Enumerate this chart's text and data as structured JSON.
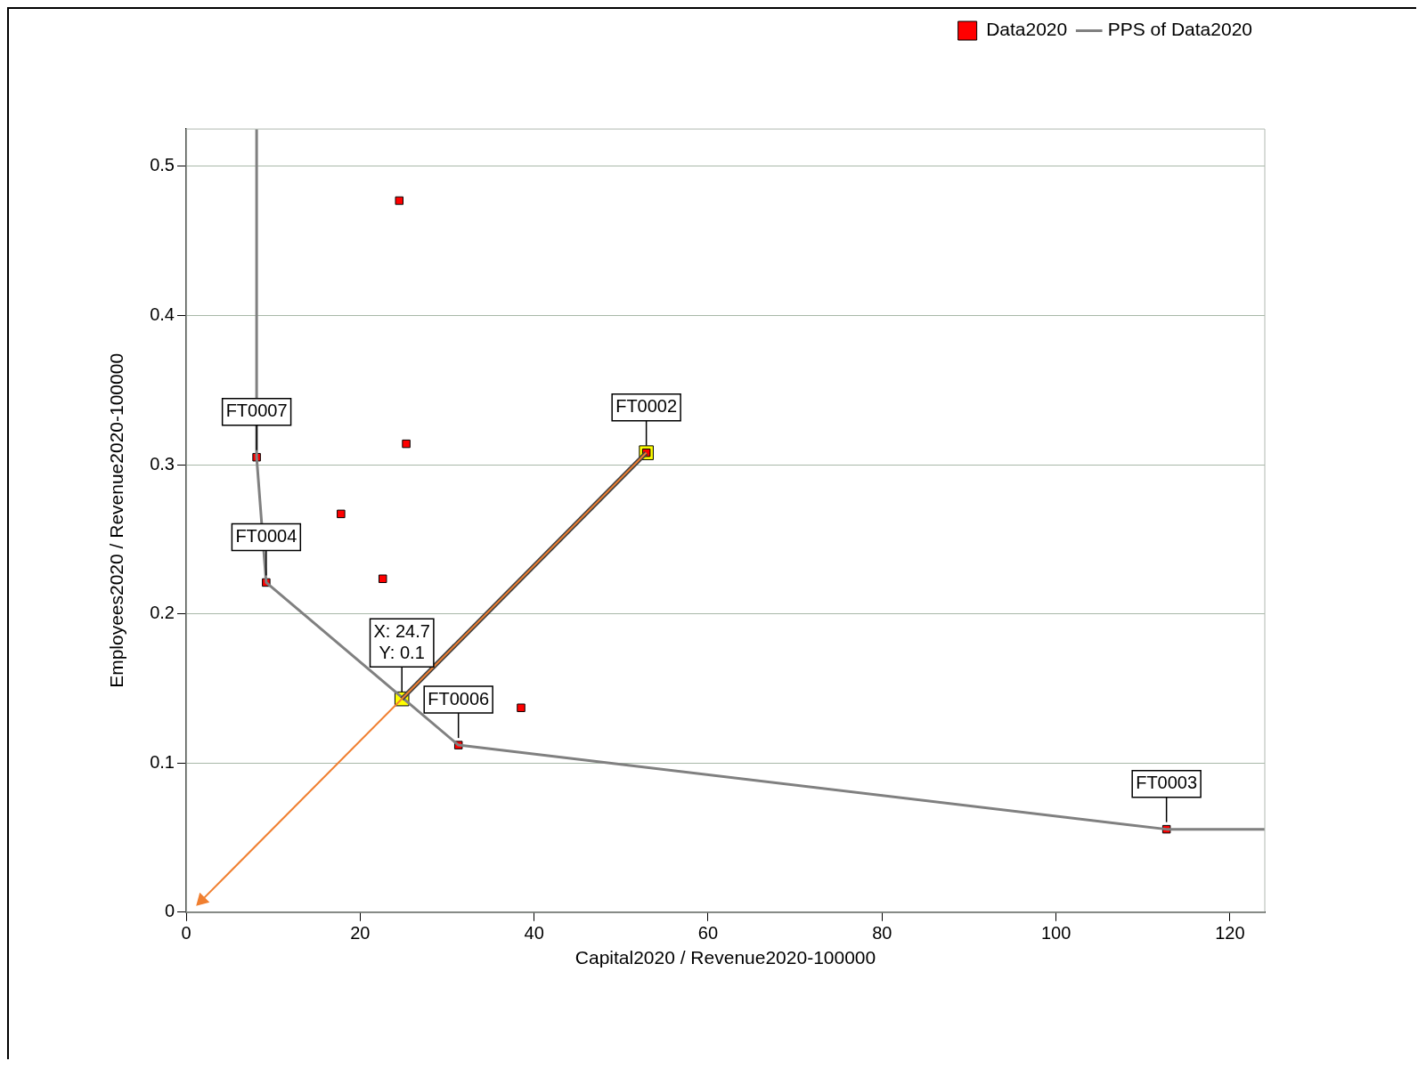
{
  "chart_data": {
    "type": "scatter",
    "xlabel": "Capital2020 / Revenue2020-100000",
    "ylabel": "Employees2020 / Revenue2020-100000",
    "xlim": [
      0,
      124
    ],
    "ylim": [
      0,
      0.525
    ],
    "xticks": [
      0,
      20,
      40,
      60,
      80,
      100,
      120
    ],
    "yticks": [
      0,
      0.1,
      0.2,
      0.3,
      0.4,
      0.5
    ],
    "grid": "y",
    "legend": "top right",
    "series": [
      {
        "type": "scatter",
        "color": "#ffff00",
        "marker": "square",
        "x": [
          52.9,
          24.8
        ],
        "values": [
          0.308,
          0.143
        ]
      },
      {
        "name": "Data2020",
        "type": "scatter",
        "color": "#ff0000",
        "marker": "square",
        "x": [
          24.5,
          8.1,
          25.3,
          17.8,
          9.2,
          22.6,
          52.9,
          38.5,
          31.3,
          112.7
        ],
        "values": [
          0.477,
          0.305,
          0.314,
          0.267,
          0.221,
          0.2235,
          0.308,
          0.137,
          0.112,
          0.0556
        ]
      },
      {
        "name": "PPS of Data2020",
        "type": "line",
        "color": "#808080",
        "marker": "none",
        "x": [
          8.1,
          8.1,
          9.2,
          31.3,
          112.7,
          124
        ],
        "values": [
          0.525,
          0.305,
          0.221,
          0.112,
          0.0556,
          0.0556
        ]
      },
      {
        "type": "line",
        "color": "#404040",
        "marker": "none",
        "x": [
          52.9,
          24.8
        ],
        "values": [
          0.308,
          0.143
        ]
      },
      {
        "type": "line",
        "color": "#f07f30",
        "marker": "triangle",
        "x": [
          52.9,
          1.8
        ],
        "values": [
          0.308,
          0.008
        ]
      }
    ],
    "annotations": [
      {
        "text": "FT0007",
        "x": 8.1,
        "y": 0.305
      },
      {
        "text": "FT0004",
        "x": 9.2,
        "y": 0.221
      },
      {
        "text": "FT0002",
        "x": 52.9,
        "y": 0.308
      },
      {
        "text": "FT0006",
        "x": 31.3,
        "y": 0.112
      },
      {
        "text": "FT0003",
        "x": 112.7,
        "y": 0.0556
      },
      {
        "text": "X: 24.7\nY: 0.1",
        "x": 24.8,
        "y": 0.143
      }
    ]
  }
}
